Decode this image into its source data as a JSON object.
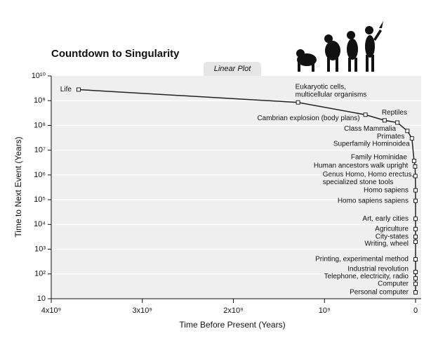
{
  "chart_data": {
    "type": "line",
    "title": "Countdown to Singularity",
    "subtitle": "Linear Plot",
    "x_label": "Time Before Present (Years)",
    "y_label": "Time to Next Event (Years)",
    "xlim": [
      4000000000,
      0
    ],
    "ylim": [
      10,
      10000000000
    ],
    "y_scale": "log",
    "grid": true,
    "color": "#222222",
    "xticks": [
      {
        "value": 4000000000,
        "label": "4x10⁹"
      },
      {
        "value": 3000000000,
        "label": "3x10⁹"
      },
      {
        "value": 2000000000,
        "label": "2x10⁹"
      },
      {
        "value": 1000000000,
        "label": "10⁹"
      },
      0
    ],
    "yticks": [
      10,
      {
        "value": 100,
        "label": "10²"
      },
      {
        "value": 1000,
        "label": "10³"
      },
      {
        "value": 10000,
        "label": "10⁴"
      },
      {
        "value": 100000,
        "label": "10⁵"
      },
      {
        "value": 1000000,
        "label": "10⁶"
      },
      {
        "value": 10000000,
        "label": "10⁷"
      },
      {
        "value": 100000000,
        "label": "10⁸"
      },
      {
        "value": 1000000000,
        "label": "10⁹"
      },
      {
        "value": 10000000000,
        "label": "10¹⁰"
      }
    ],
    "labels": [
      "Life",
      [
        "Eukaryotic cells,",
        "multicellular organisms"
      ],
      "Cambrian explosion (body plans)",
      "Reptiles",
      "Class Mammalia",
      "Primates",
      "Superfamily Hominoidea",
      "Family Hominidae",
      "Human ancestors walk upright",
      [
        "Genus Homo, Homo erectus,",
        "specialized stone tools"
      ],
      "Homo sapiens",
      "Homo sapiens sapiens",
      "Art, early cities",
      "Agriculture",
      "City-states",
      "Writing, wheel",
      "Printing, experimental method",
      "Industrial revolution",
      "Telephone, electricity, radio",
      "Computer",
      "Personal computer"
    ],
    "x": [
      3700000000,
      1290000000,
      550000000,
      340000000,
      200000000,
      90000000,
      40000000,
      16000000,
      5000000,
      2000000,
      300000,
      100000,
      40000,
      12000,
      6000,
      4000,
      500,
      200,
      100,
      50,
      20
    ],
    "values": [
      2800000000,
      850000000,
      270000000,
      160000000,
      130000000,
      60000000,
      30000000,
      3700000,
      2200000,
      900000,
      240000,
      90000,
      17000,
      6500,
      3200,
      2000,
      390,
      120,
      66,
      40,
      18
    ]
  }
}
